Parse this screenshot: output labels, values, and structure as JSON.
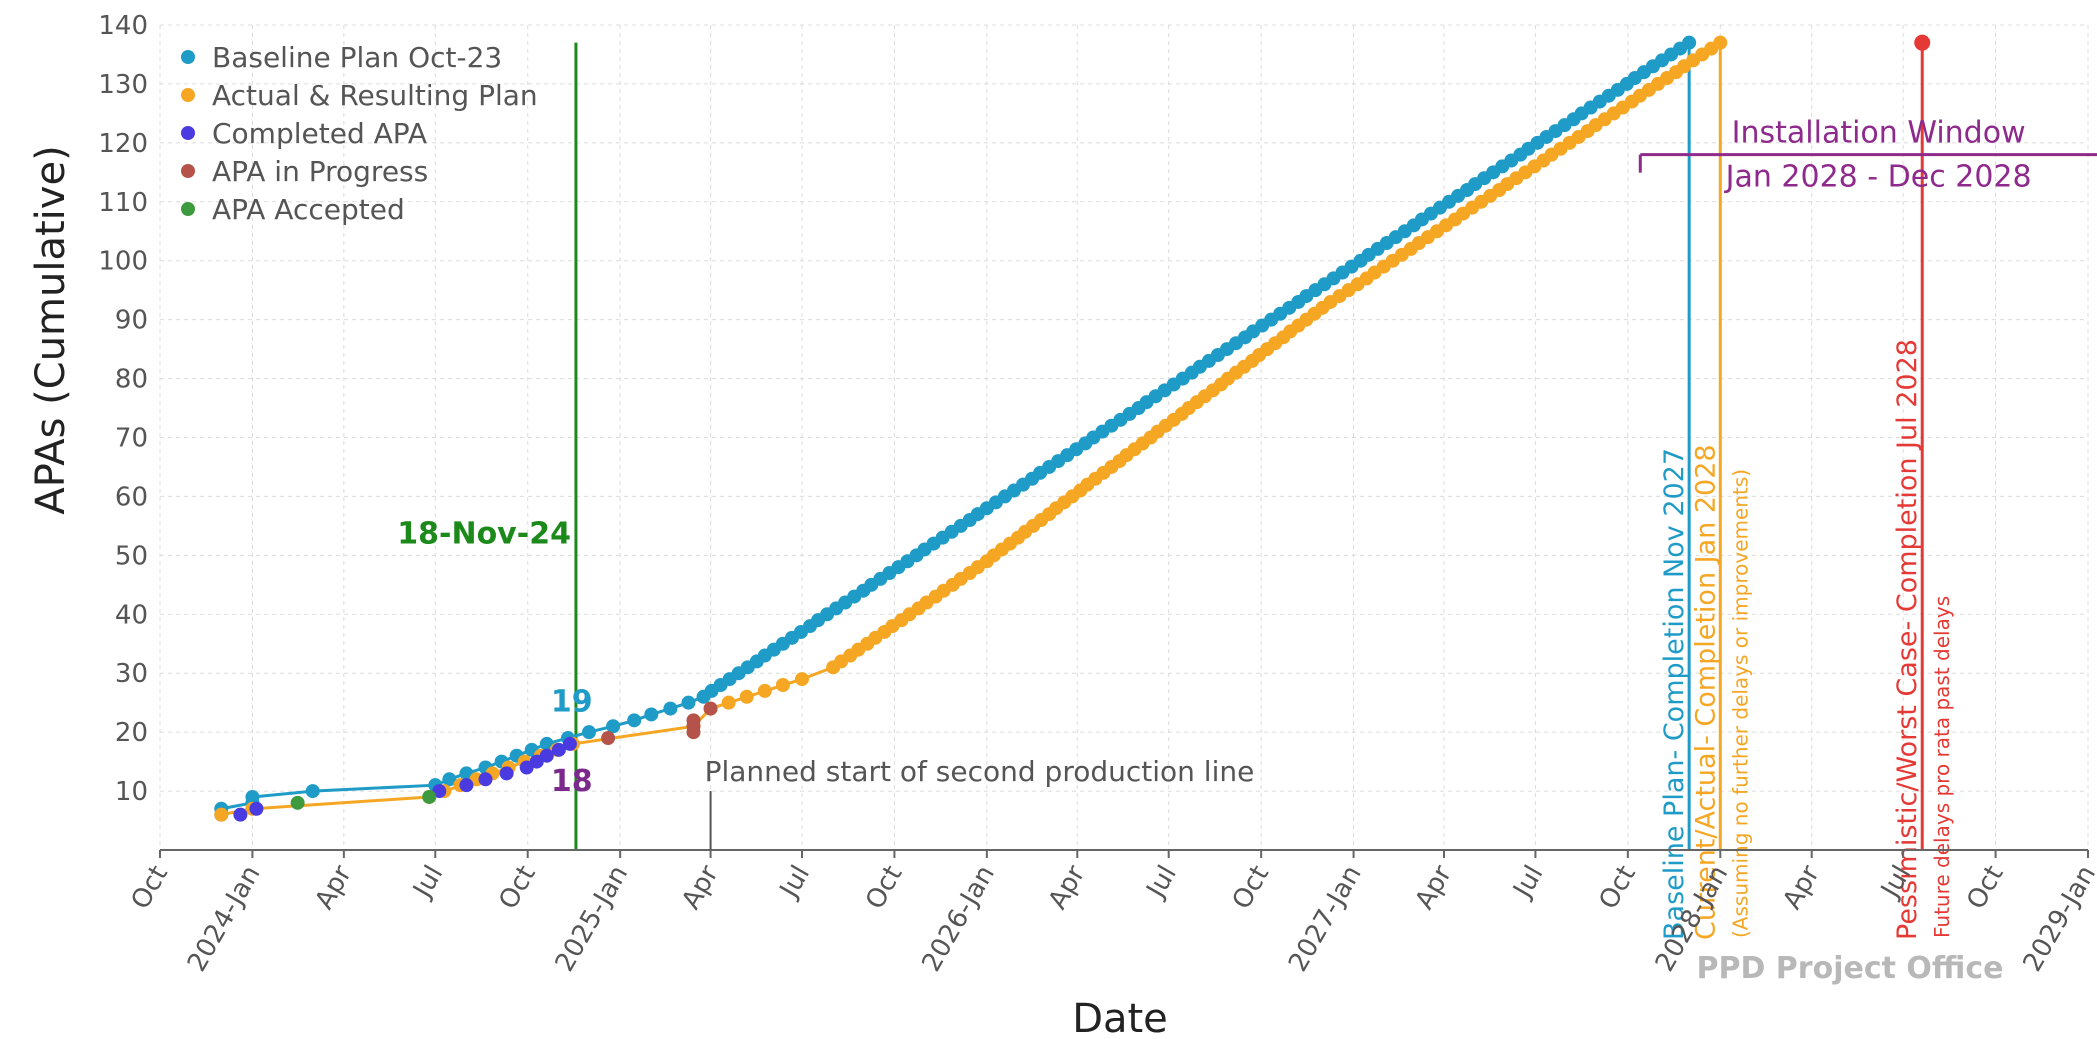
{
  "chart_data": {
    "type": "line",
    "title": "",
    "xlabel": "Date",
    "ylabel": "APAs (Cumulative)",
    "ylim": [
      0,
      140
    ],
    "xlim": [
      "2023-10-01",
      "2029-01-01"
    ],
    "y_ticks": [
      10,
      20,
      30,
      40,
      50,
      60,
      70,
      80,
      90,
      100,
      110,
      120,
      130,
      140
    ],
    "x_ticks": [
      {
        "date": "2023-10-01",
        "label": "Oct"
      },
      {
        "date": "2024-01-01",
        "label": "2024-Jan"
      },
      {
        "date": "2024-04-01",
        "label": "Apr"
      },
      {
        "date": "2024-07-01",
        "label": "Jul"
      },
      {
        "date": "2024-10-01",
        "label": "Oct"
      },
      {
        "date": "2025-01-01",
        "label": "2025-Jan"
      },
      {
        "date": "2025-04-01",
        "label": "Apr"
      },
      {
        "date": "2025-07-01",
        "label": "Jul"
      },
      {
        "date": "2025-10-01",
        "label": "Oct"
      },
      {
        "date": "2026-01-01",
        "label": "2026-Jan"
      },
      {
        "date": "2026-04-01",
        "label": "Apr"
      },
      {
        "date": "2026-07-01",
        "label": "Jul"
      },
      {
        "date": "2026-10-01",
        "label": "Oct"
      },
      {
        "date": "2027-01-01",
        "label": "2027-Jan"
      },
      {
        "date": "2027-04-01",
        "label": "Apr"
      },
      {
        "date": "2027-07-01",
        "label": "Jul"
      },
      {
        "date": "2027-10-01",
        "label": "Oct"
      },
      {
        "date": "2028-01-01",
        "label": "2028-Jan"
      },
      {
        "date": "2028-04-01",
        "label": "Apr"
      },
      {
        "date": "2028-07-01",
        "label": "Jul"
      },
      {
        "date": "2028-10-01",
        "label": "Oct"
      },
      {
        "date": "2029-01-01",
        "label": "2029-Jan"
      }
    ],
    "grid": true,
    "legend_position": "top-left",
    "series": [
      {
        "name": "Baseline Plan Oct-23",
        "color": "#1f9bc7",
        "points": [
          {
            "x": "2023-12-01",
            "y": 6
          },
          {
            "x": "2023-12-01",
            "y": 7
          },
          {
            "x": "2024-01-01",
            "y": 8
          },
          {
            "x": "2024-01-01",
            "y": 9
          },
          {
            "x": "2024-03-01",
            "y": 10
          },
          {
            "x": "2024-07-01",
            "y": 11
          },
          {
            "x": "2024-07-15",
            "y": 12
          },
          {
            "x": "2024-08-01",
            "y": 13
          },
          {
            "x": "2024-08-20",
            "y": 14
          },
          {
            "x": "2024-09-05",
            "y": 15
          },
          {
            "x": "2024-09-20",
            "y": 16
          },
          {
            "x": "2024-10-05",
            "y": 17
          },
          {
            "x": "2024-10-20",
            "y": 18
          },
          {
            "x": "2024-11-10",
            "y": 19
          },
          {
            "x": "2024-12-01",
            "y": 20
          },
          {
            "x": "2024-12-25",
            "y": 21
          },
          {
            "x": "2025-01-15",
            "y": 22
          },
          {
            "x": "2025-02-01",
            "y": 23
          },
          {
            "x": "2025-02-20",
            "y": 24
          },
          {
            "x": "2025-03-10",
            "y": 25
          },
          {
            "x": "2025-03-25",
            "y": 26
          },
          {
            "x": "2027-12-01",
            "y": 137
          }
        ]
      },
      {
        "name": "Actual & Resulting Plan",
        "color": "#f5a623",
        "points": [
          {
            "x": "2023-12-01",
            "y": 6
          },
          {
            "x": "2024-01-01",
            "y": 7
          },
          {
            "x": "2024-06-25",
            "y": 9
          },
          {
            "x": "2024-11-15",
            "y": 18
          },
          {
            "x": "2025-03-15",
            "y": 21
          },
          {
            "x": "2025-04-01",
            "y": 24
          },
          {
            "x": "2025-07-01",
            "y": 29
          },
          {
            "x": "2025-08-01",
            "y": 31
          },
          {
            "x": "2026-01-01",
            "y": 49
          },
          {
            "x": "2026-12-01",
            "y": 92
          },
          {
            "x": "2028-01-01",
            "y": 137
          }
        ]
      },
      {
        "name": "Completed APA",
        "color": "#4a3be0",
        "points": [
          {
            "x": "2023-12-20",
            "y": 6
          },
          {
            "x": "2024-01-05",
            "y": 7
          },
          {
            "x": "2024-07-05",
            "y": 10
          },
          {
            "x": "2024-08-01",
            "y": 11
          },
          {
            "x": "2024-08-20",
            "y": 12
          },
          {
            "x": "2024-09-10",
            "y": 13
          },
          {
            "x": "2024-09-30",
            "y": 14
          },
          {
            "x": "2024-10-10",
            "y": 15
          },
          {
            "x": "2024-10-20",
            "y": 16
          },
          {
            "x": "2024-11-01",
            "y": 17
          },
          {
            "x": "2024-11-12",
            "y": 18
          }
        ]
      },
      {
        "name": "APA in Progress",
        "color": "#b5524a",
        "points": [
          {
            "x": "2024-12-20",
            "y": 19
          },
          {
            "x": "2025-03-15",
            "y": 20
          },
          {
            "x": "2025-03-15",
            "y": 21
          },
          {
            "x": "2025-03-15",
            "y": 22
          },
          {
            "x": "2025-04-01",
            "y": 24
          }
        ]
      },
      {
        "name": "APA Accepted",
        "color": "#3e9a3e",
        "points": [
          {
            "x": "2024-02-15",
            "y": 8
          },
          {
            "x": "2024-06-25",
            "y": 9
          }
        ]
      }
    ],
    "reference_lines": [
      {
        "x": "2024-11-18",
        "color": "#1b8a1b",
        "label": "18-Nov-24"
      },
      {
        "x": "2027-12-01",
        "color": "#1f9bc7",
        "label": "Baseline Plan- Completion Nov 2027"
      },
      {
        "x": "2028-01-01",
        "color": "#f5a623",
        "label": "Current/Actual- Completion Jan 2028",
        "sublabel": "(Assuming no further delays or improvements)"
      },
      {
        "x": "2028-07-20",
        "color": "#e53935",
        "label": "Pessimistic/Worst Case- Completion Jul 2028",
        "sublabel": "Future delays pro rata past delays",
        "marker_y": 137
      }
    ],
    "annotations": [
      {
        "text": "19",
        "x": "2024-10-15",
        "y": 23.5,
        "color": "#1f9bc7"
      },
      {
        "text": "18",
        "x": "2024-10-15",
        "y": 10,
        "color": "#7b2a8c"
      },
      {
        "text": "Planned start of second production line",
        "x": "2025-04-01",
        "y": 10,
        "color": "#555555"
      }
    ],
    "installation_window": {
      "label": "Installation Window",
      "range_label": "Jan 2028 - Dec 2028",
      "x_start": "2028-01-01",
      "x_end": "2028-12-31",
      "y": 118,
      "color": "#8e2a8c"
    },
    "watermark": "PPD Project Office"
  }
}
